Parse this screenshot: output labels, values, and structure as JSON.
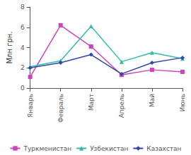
{
  "chart_data": {
    "type": "line",
    "categories": [
      "Январь",
      "Февраль",
      "Март",
      "Апрель",
      "Май",
      "Июнь"
    ],
    "series": [
      {
        "name": "Туркменистан",
        "color": "#cc44bb",
        "values": [
          1.1,
          6.2,
          4.1,
          1.3,
          1.8,
          1.6
        ],
        "marker": "square",
        "line_style": "solid"
      },
      {
        "name": "Узбекистан",
        "color": "#33bbaa",
        "values": [
          2.1,
          2.7,
          6.1,
          2.6,
          3.5,
          2.9
        ],
        "marker": "triangle",
        "line_style": "solid"
      },
      {
        "name": "Казахстан",
        "color": "#3344aa",
        "values": [
          2.0,
          2.5,
          3.3,
          1.4,
          2.5,
          3.0
        ],
        "marker": "diamond",
        "line_style": "solid"
      }
    ],
    "y_label": "Млн грн.",
    "ylim": [
      0,
      8
    ],
    "yticks": [
      0,
      2,
      4,
      6,
      8
    ],
    "grid": false,
    "legend": "bottom"
  }
}
